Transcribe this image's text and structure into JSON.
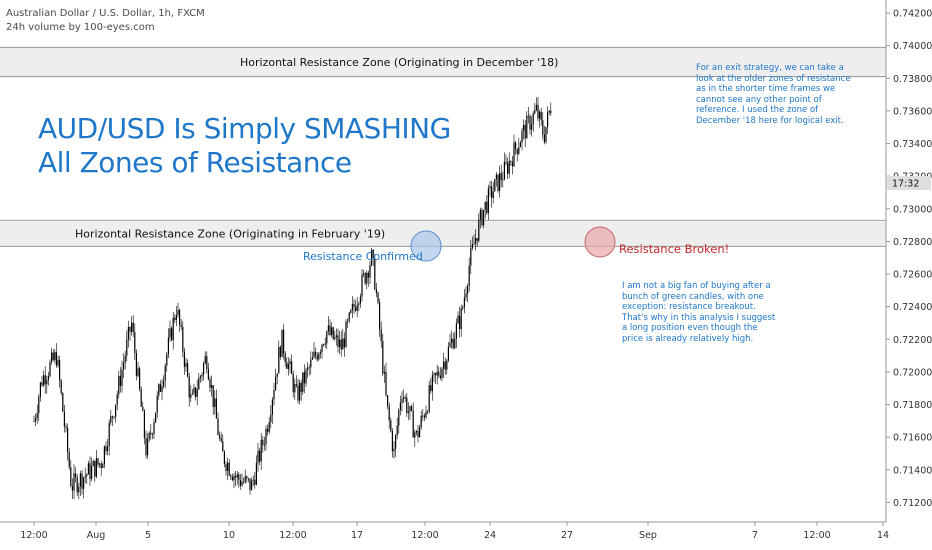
{
  "header": {
    "symbol_line": "Australian Dollar / U.S. Dollar, 1h, FXCM",
    "volume_line": "24h volume by 100-eyes.com"
  },
  "headline": {
    "line1": "AUD/USD Is Simply SMASHING",
    "line2": "All Zones of Resistance"
  },
  "annotations": {
    "zone_top_label": "Horizontal Resistance Zone (Originating in December '18)",
    "zone_bottom_label": "Horizontal Resistance Zone (Originating in February '19)",
    "resistance_confirmed": "Resistance Confirmed",
    "resistance_broken": "Resistance Broken!",
    "exit_note": [
      "For an exit strategy, we can take a",
      "look at the older zones of resistance",
      "as in the shorter time frames we",
      "cannot see any other point of",
      "reference. I used the zone of",
      "December '18 here for logical exit."
    ],
    "entry_note": [
      "I am not a big fan of buying after a",
      "bunch of green candles, with one",
      "exception: resistance breakout.",
      "That's why in this analysis I suggest",
      "a long position even though the",
      "price is already relatively high."
    ]
  },
  "colors": {
    "candle": "#000000",
    "breakout_candle": "#1f77c9",
    "zone_fill": "#eeeeee",
    "zone_border": "#888888",
    "headline": "#1f77c9",
    "confirmed_circle": "#a9c8ea",
    "broken_circle": "#e8a6a6",
    "broken_text": "#c62828",
    "price_tag_bg": "#dedede"
  },
  "chart_data": {
    "type": "candlestick",
    "title": "Australian Dollar / U.S. Dollar, 1h, FXCM",
    "ylim": [
      0.7108,
      0.7428
    ],
    "y_ticks": [
      "0.74200",
      "0.74000",
      "0.73800",
      "0.73600",
      "0.73400",
      "0.73200",
      "0.73000",
      "0.72800",
      "0.72600",
      "0.72400",
      "0.72200",
      "0.72000",
      "0.71800",
      "0.71600",
      "0.71400",
      "0.71200"
    ],
    "x_ticks": [
      "12:00",
      "Aug",
      "5",
      "10",
      "12:00",
      "17",
      "12:00",
      "24",
      "27",
      "Sep",
      "7",
      "12:00",
      "14"
    ],
    "current_price_tag": "17:32",
    "resistance_zones": [
      {
        "name": "December '18",
        "low": 0.7381,
        "high": 0.7399
      },
      {
        "name": "February '19",
        "low": 0.7277,
        "high": 0.7293
      }
    ],
    "price_path": [
      {
        "x": "Jul 31 00:00",
        "close": 0.717
      },
      {
        "x": "Jul 31 12:00",
        "close": 0.7195
      },
      {
        "x": "Aug 1 12:00",
        "close": 0.721
      },
      {
        "x": "Aug 2 12:00",
        "close": 0.713
      },
      {
        "x": "Aug 4 12:00",
        "close": 0.7145
      },
      {
        "x": "Aug 5 12:00",
        "close": 0.7185
      },
      {
        "x": "Aug 6 12:00",
        "close": 0.723
      },
      {
        "x": "Aug 7 12:00",
        "close": 0.715
      },
      {
        "x": "Aug 8 12:00",
        "close": 0.7195
      },
      {
        "x": "Aug 9 12:00",
        "close": 0.724
      },
      {
        "x": "Aug 10 12:00",
        "close": 0.718
      },
      {
        "x": "Aug 11 12:00",
        "close": 0.721
      },
      {
        "x": "Aug 12 12:00",
        "close": 0.715
      },
      {
        "x": "Aug 13 12:00",
        "close": 0.7135
      },
      {
        "x": "Aug 14 12:00",
        "close": 0.713
      },
      {
        "x": "Aug 15 12:00",
        "close": 0.7165
      },
      {
        "x": "Aug 16 12:00",
        "close": 0.722
      },
      {
        "x": "Aug 17 12:00",
        "close": 0.7185
      },
      {
        "x": "Aug 18 12:00",
        "close": 0.7205
      },
      {
        "x": "Aug 19 12:00",
        "close": 0.7225
      },
      {
        "x": "Aug 20 12:00",
        "close": 0.7215
      },
      {
        "x": "Aug 21 12:00",
        "close": 0.7245
      },
      {
        "x": "Aug 22 12:00",
        "close": 0.727
      },
      {
        "x": "Aug 22 18:00",
        "close": 0.7255
      },
      {
        "x": "Aug 23 12:00",
        "close": 0.718
      },
      {
        "x": "Aug 24 00:00",
        "close": 0.715
      },
      {
        "x": "Aug 24 12:00",
        "close": 0.719
      },
      {
        "x": "Aug 25 12:00",
        "close": 0.716
      },
      {
        "x": "Aug 26 12:00",
        "close": 0.719
      },
      {
        "x": "Aug 27 12:00",
        "close": 0.721
      },
      {
        "x": "Aug 28 12:00",
        "close": 0.7235
      },
      {
        "x": "Aug 29 00:00",
        "close": 0.7265
      },
      {
        "x": "Aug 29 12:00",
        "close": 0.7285
      },
      {
        "x": "Aug 30 00:00",
        "close": 0.73
      },
      {
        "x": "Aug 30 12:00",
        "close": 0.731
      },
      {
        "x": "Aug 31 12:00",
        "close": 0.7325
      },
      {
        "x": "Sep 1 12:00",
        "close": 0.7345
      },
      {
        "x": "Sep 2 12:00",
        "close": 0.736
      },
      {
        "x": "Sep 3 00:00",
        "close": 0.7345
      },
      {
        "x": "Sep 3 12:00",
        "close": 0.7365
      }
    ]
  }
}
